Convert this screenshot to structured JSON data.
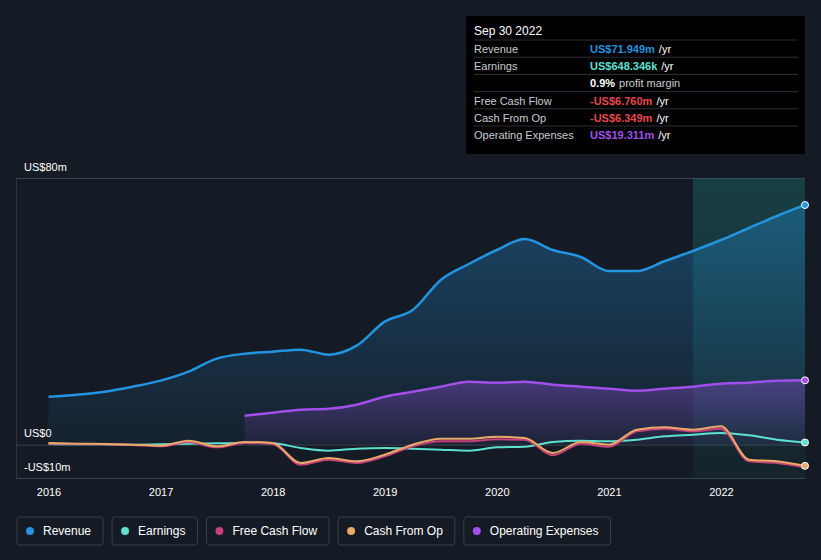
{
  "chart_data": {
    "type": "line",
    "x": [
      2016,
      2016.25,
      2016.5,
      2016.75,
      2017,
      2017.25,
      2017.5,
      2017.75,
      2018,
      2018.25,
      2018.5,
      2018.75,
      2019,
      2019.25,
      2019.5,
      2019.75,
      2020,
      2020.25,
      2020.5,
      2020.75,
      2021,
      2021.25,
      2021.5,
      2021.75,
      2022,
      2022.25,
      2022.5,
      2022.75
    ],
    "xlim": [
      2015.71,
      2022.75
    ],
    "xticks": [
      2016,
      2017,
      2018,
      2019,
      2020,
      2021,
      2022
    ],
    "ylim": [
      -10,
      80
    ],
    "yticks": [
      {
        "value": -10,
        "label": "-US$10m"
      },
      {
        "value": 0,
        "label": "US$0"
      },
      {
        "value": 80,
        "label": "US$80m"
      }
    ],
    "grid": true,
    "legend": "bottom",
    "series": [
      {
        "name": "Revenue",
        "color": "#2394df",
        "type": "area",
        "marker": "circle",
        "values": [
          14.4,
          15.0,
          15.9,
          17.4,
          19.2,
          21.9,
          25.8,
          27.3,
          27.9,
          28.5,
          27.0,
          29.7,
          36.9,
          40.4,
          49.4,
          54.2,
          58.4,
          61.7,
          58.4,
          56.3,
          52.1,
          52.1,
          55.1,
          58.1,
          61.4,
          65.0,
          68.6,
          71.9
        ]
      },
      {
        "name": "Earnings",
        "color": "#5ee0cf",
        "type": "line",
        "marker": "circle",
        "values": [
          0.2,
          0.1,
          0.1,
          0.0,
          0.1,
          0.3,
          0.4,
          0.5,
          0.4,
          -1.0,
          -1.8,
          -1.2,
          -1.0,
          -1.2,
          -1.5,
          -1.8,
          -0.8,
          -0.6,
          0.8,
          1.2,
          1.0,
          1.5,
          2.5,
          3.0,
          3.5,
          2.8,
          1.5,
          0.65
        ]
      },
      {
        "name": "Free Cash Flow",
        "color": "#c8417a",
        "type": "line",
        "values": [
          0.3,
          0.2,
          0.1,
          -0.1,
          -0.5,
          0.8,
          -0.8,
          0.5,
          0.2,
          -6.0,
          -4.5,
          -5.5,
          -3.5,
          -0.5,
          1.0,
          1.0,
          1.6,
          1.5,
          -3.2,
          0.3,
          -0.6,
          4.0,
          4.8,
          4.0,
          4.8,
          -5.0,
          -5.5,
          -6.76
        ]
      },
      {
        "name": "Cash From Op",
        "color": "#e9a96b",
        "type": "line",
        "marker": "circle",
        "values": [
          0.5,
          0.3,
          0.2,
          0.0,
          -0.3,
          1.2,
          -0.5,
          0.8,
          0.5,
          -5.5,
          -4.0,
          -5.0,
          -3.0,
          0.0,
          1.8,
          1.8,
          2.4,
          2.0,
          -2.5,
          0.8,
          0.0,
          4.5,
          5.2,
          4.5,
          5.5,
          -4.5,
          -5.0,
          -6.35
        ]
      },
      {
        "name": "Operating Expenses",
        "color": "#a050e8",
        "type": "area",
        "marker": "circle",
        "values": [
          null,
          null,
          null,
          null,
          null,
          null,
          null,
          8.7,
          9.6,
          10.5,
          10.8,
          12.0,
          14.4,
          15.9,
          17.4,
          18.9,
          18.6,
          18.9,
          18.0,
          17.4,
          16.8,
          16.2,
          16.8,
          17.4,
          18.3,
          18.6,
          19.2,
          19.3
        ]
      }
    ],
    "annotations": {
      "date": "Sep 30 2022",
      "rows": [
        {
          "label": "Revenue",
          "value": "US$71.949m",
          "unit": "/yr",
          "color": "#2394df"
        },
        {
          "label": "Earnings",
          "value": "US$648.346k",
          "unit": "/yr",
          "color": "#5ee0cf"
        },
        {
          "value": "0.9%",
          "label": "profit margin",
          "color": "#ffffff"
        },
        {
          "label": "Free Cash Flow",
          "value": "-US$6.760m",
          "unit": "/yr",
          "color": "#e8484f"
        },
        {
          "label": "Cash From Op",
          "value": "-US$6.349m",
          "unit": "/yr",
          "color": "#e8484f"
        },
        {
          "label": "Operating Expenses",
          "value": "US$19.311m",
          "unit": "/yr",
          "color": "#a050e8"
        }
      ]
    }
  }
}
